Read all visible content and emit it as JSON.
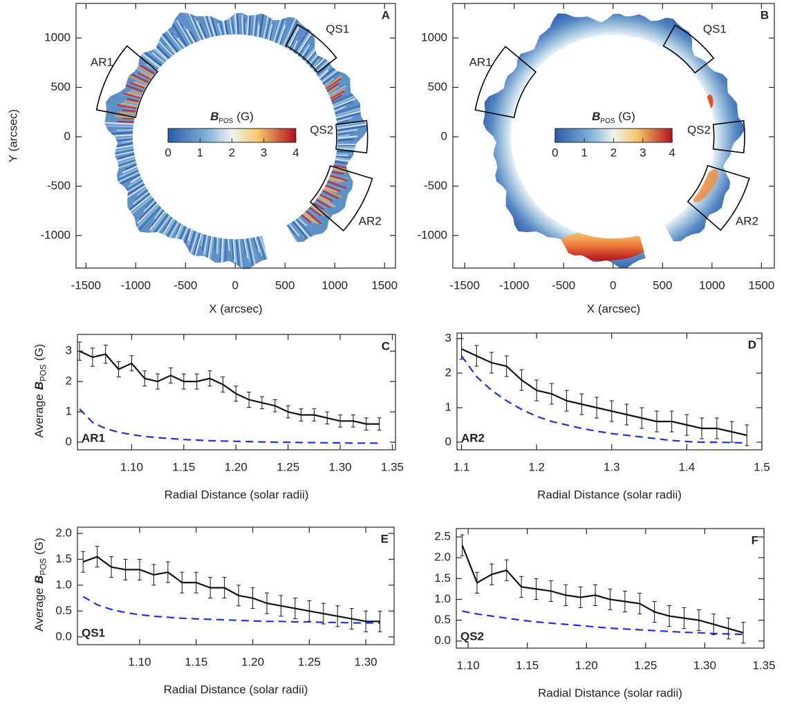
{
  "chart_data": [
    {
      "type": "map",
      "label": "A",
      "xlabel": "X (arcsec)",
      "ylabel": "Y (arcsec)",
      "xlim": [
        -1600,
        1610
      ],
      "ylim": [
        -1330,
        1350
      ],
      "xticks": [
        -1500,
        -1000,
        -500,
        0,
        500,
        1000,
        1500
      ],
      "yticks": [
        -1000,
        -500,
        0,
        500,
        1000
      ],
      "colorbar": {
        "symbol": "B",
        "subscript": "POS",
        "unit": "(G)",
        "lim": [
          0,
          4
        ],
        "ticks": [
          0,
          1,
          2,
          3,
          4
        ]
      },
      "regions": [
        "AR1",
        "QS1",
        "QS2",
        "AR2"
      ],
      "region_color": "#d8232a"
    },
    {
      "type": "map",
      "label": "B",
      "xlabel": "X (arcsec)",
      "xlim": [
        -1620,
        1630
      ],
      "ylim": [
        -1330,
        1350
      ],
      "xticks": [
        -1500,
        -1000,
        -500,
        0,
        500,
        1000,
        1500
      ],
      "yticks": [
        -1000,
        -500,
        0,
        500,
        1000
      ],
      "colorbar": {
        "symbol": "B",
        "subscript": "POS",
        "unit": "(G)",
        "lim": [
          0,
          4
        ],
        "ticks": [
          0,
          1,
          2,
          3,
          4
        ]
      },
      "regions": [
        "AR1",
        "QS1",
        "QS2",
        "AR2"
      ],
      "region_color": "#d8232a"
    },
    {
      "type": "line",
      "label": "C",
      "region": "AR1",
      "region_color": "#d8232a",
      "xlabel": "Radial Distance (solar radii)",
      "ylabel": {
        "prefix": "Average",
        "symbol": "B",
        "subscript": "POS",
        "unit": "(G)"
      },
      "xlim": [
        1.048,
        1.353
      ],
      "ylim": [
        -0.25,
        3.55
      ],
      "xticks": [
        {
          "value": 1.1,
          "label": "1.10"
        },
        1.15,
        {
          "value": 1.2,
          "label": "1.20"
        },
        1.25,
        {
          "value": 1.3,
          "label": "1.30"
        },
        1.35
      ],
      "yticks": [
        0,
        1,
        2,
        3
      ],
      "x": [
        1.05,
        1.0625,
        1.075,
        1.0875,
        1.1,
        1.1125,
        1.125,
        1.1375,
        1.15,
        1.1625,
        1.175,
        1.1875,
        1.2,
        1.2125,
        1.225,
        1.2375,
        1.25,
        1.2625,
        1.275,
        1.2875,
        1.3,
        1.3125,
        1.325,
        1.3375
      ],
      "series": [
        {
          "color": "#111111",
          "style": "solid",
          "values": [
            3.0,
            2.8,
            2.9,
            2.4,
            2.6,
            2.1,
            2.0,
            2.2,
            2.0,
            2.0,
            2.1,
            1.9,
            1.6,
            1.4,
            1.3,
            1.2,
            1.0,
            0.9,
            0.9,
            0.8,
            0.7,
            0.7,
            0.6,
            0.6
          ],
          "errors": [
            0.3,
            0.3,
            0.3,
            0.25,
            0.25,
            0.25,
            0.25,
            0.25,
            0.25,
            0.25,
            0.25,
            0.25,
            0.25,
            0.25,
            0.2,
            0.2,
            0.2,
            0.2,
            0.2,
            0.2,
            0.2,
            0.2,
            0.2,
            0.2
          ]
        },
        {
          "color": "#1f2fe0",
          "style": "dashed",
          "values": [
            1.1,
            0.65,
            0.45,
            0.33,
            0.25,
            0.19,
            0.15,
            0.12,
            0.09,
            0.07,
            0.05,
            0.04,
            0.03,
            0.02,
            0.01,
            0.0,
            0.0,
            -0.01,
            -0.01,
            -0.02,
            -0.02,
            -0.03,
            -0.03,
            -0.03
          ]
        }
      ]
    },
    {
      "type": "line",
      "label": "D",
      "region": "AR2",
      "region_color": "#d8232a",
      "xlabel": "Radial Distance (solar radii)",
      "xlim": [
        1.094,
        1.5
      ],
      "ylim": [
        -0.22,
        3.16
      ],
      "xticks": [
        1.1,
        1.2,
        1.3,
        1.4,
        1.5
      ],
      "yticks": [
        0,
        1,
        2,
        3
      ],
      "x": [
        1.1,
        1.12,
        1.14,
        1.16,
        1.18,
        1.2,
        1.22,
        1.24,
        1.26,
        1.28,
        1.3,
        1.32,
        1.34,
        1.36,
        1.38,
        1.4,
        1.42,
        1.44,
        1.46,
        1.48
      ],
      "series": [
        {
          "color": "#111111",
          "style": "solid",
          "values": [
            2.7,
            2.5,
            2.3,
            2.2,
            1.8,
            1.5,
            1.4,
            1.2,
            1.1,
            1.0,
            0.9,
            0.8,
            0.7,
            0.6,
            0.6,
            0.5,
            0.4,
            0.4,
            0.3,
            0.2
          ],
          "errors": [
            0.3,
            0.3,
            0.3,
            0.3,
            0.3,
            0.3,
            0.3,
            0.3,
            0.3,
            0.3,
            0.3,
            0.3,
            0.3,
            0.3,
            0.3,
            0.3,
            0.3,
            0.3,
            0.3,
            0.3
          ]
        },
        {
          "color": "#1f2fe0",
          "style": "dashed",
          "values": [
            2.5,
            1.9,
            1.5,
            1.2,
            0.95,
            0.75,
            0.6,
            0.5,
            0.4,
            0.32,
            0.25,
            0.2,
            0.15,
            0.1,
            0.05,
            0.02,
            0.0,
            0.0,
            -0.01,
            -0.02
          ]
        }
      ]
    },
    {
      "type": "line",
      "label": "E",
      "region": "QS1",
      "region_color": "#d8232a",
      "xlabel": "Radial Distance (solar radii)",
      "ylabel": {
        "prefix": "Average",
        "symbol": "B",
        "subscript": "POS",
        "unit": "(G)"
      },
      "xlim": [
        1.045,
        1.325
      ],
      "ylim": [
        -0.15,
        2.12
      ],
      "xticks": [
        {
          "value": 1.1,
          "label": "1.10"
        },
        1.15,
        {
          "value": 1.2,
          "label": "1.20"
        },
        1.25,
        {
          "value": 1.3,
          "label": "1.30"
        }
      ],
      "yticks": [
        {
          "value": 0,
          "label": "0.0"
        },
        0.5,
        {
          "value": 1,
          "label": "1.0"
        },
        1.5,
        {
          "value": 2,
          "label": "2.0"
        }
      ],
      "x": [
        1.05,
        1.0625,
        1.075,
        1.0875,
        1.1,
        1.1125,
        1.125,
        1.1375,
        1.15,
        1.1625,
        1.175,
        1.1875,
        1.2,
        1.2125,
        1.225,
        1.2375,
        1.25,
        1.2625,
        1.275,
        1.2875,
        1.3,
        1.3125
      ],
      "series": [
        {
          "color": "#111111",
          "style": "solid",
          "values": [
            1.45,
            1.55,
            1.35,
            1.3,
            1.3,
            1.2,
            1.25,
            1.05,
            1.05,
            0.95,
            0.95,
            0.8,
            0.75,
            0.65,
            0.6,
            0.55,
            0.5,
            0.45,
            0.4,
            0.35,
            0.3,
            0.3
          ],
          "errors": [
            0.2,
            0.2,
            0.2,
            0.2,
            0.2,
            0.2,
            0.2,
            0.2,
            0.2,
            0.2,
            0.2,
            0.2,
            0.2,
            0.2,
            0.2,
            0.2,
            0.2,
            0.2,
            0.2,
            0.2,
            0.2,
            0.2
          ]
        },
        {
          "color": "#1f2fe0",
          "style": "dashed",
          "values": [
            0.78,
            0.62,
            0.53,
            0.47,
            0.43,
            0.4,
            0.38,
            0.36,
            0.35,
            0.34,
            0.33,
            0.32,
            0.31,
            0.3,
            0.3,
            0.29,
            0.29,
            0.28,
            0.28,
            0.27,
            0.27,
            0.27
          ]
        }
      ]
    },
    {
      "type": "line",
      "label": "F",
      "region": "QS2",
      "region_color": "#d8232a",
      "xlabel": "Radial Distance (solar radii)",
      "xlim": [
        1.09,
        1.35
      ],
      "ylim": [
        -0.17,
        2.7
      ],
      "xticks": [
        {
          "value": 1.1,
          "label": "1.10"
        },
        1.15,
        {
          "value": 1.2,
          "label": "1.20"
        },
        1.25,
        {
          "value": 1.3,
          "label": "1.30"
        },
        1.35
      ],
      "yticks": [
        {
          "value": 0,
          "label": "0.0"
        },
        0.5,
        {
          "value": 1,
          "label": "1.0"
        },
        1.5,
        {
          "value": 2,
          "label": "2.0"
        },
        2.5
      ],
      "x": [
        1.095,
        1.1075,
        1.12,
        1.1325,
        1.145,
        1.1575,
        1.17,
        1.1825,
        1.195,
        1.2075,
        1.22,
        1.2325,
        1.245,
        1.2575,
        1.27,
        1.2825,
        1.295,
        1.3075,
        1.32,
        1.3325
      ],
      "series": [
        {
          "color": "#111111",
          "style": "solid",
          "values": [
            2.3,
            1.4,
            1.6,
            1.7,
            1.3,
            1.25,
            1.2,
            1.1,
            1.05,
            1.1,
            1.0,
            0.95,
            0.9,
            0.7,
            0.6,
            0.55,
            0.5,
            0.4,
            0.3,
            0.2
          ],
          "errors": [
            0.25,
            0.25,
            0.25,
            0.25,
            0.25,
            0.25,
            0.25,
            0.25,
            0.25,
            0.25,
            0.25,
            0.25,
            0.25,
            0.25,
            0.25,
            0.25,
            0.25,
            0.25,
            0.25,
            0.25
          ]
        },
        {
          "color": "#1f2fe0",
          "style": "dashed",
          "values": [
            0.72,
            0.65,
            0.6,
            0.55,
            0.5,
            0.46,
            0.43,
            0.4,
            0.37,
            0.34,
            0.31,
            0.29,
            0.27,
            0.25,
            0.23,
            0.21,
            0.2,
            0.18,
            0.17,
            0.16
          ]
        }
      ]
    }
  ]
}
